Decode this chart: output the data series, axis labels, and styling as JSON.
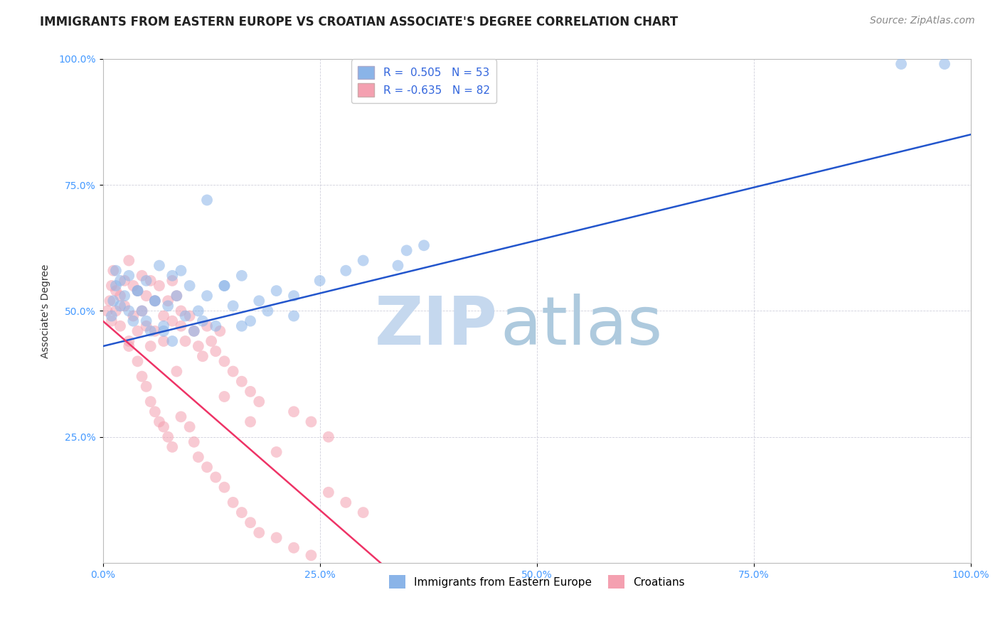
{
  "title": "IMMIGRANTS FROM EASTERN EUROPE VS CROATIAN ASSOCIATE'S DEGREE CORRELATION CHART",
  "source": "Source: ZipAtlas.com",
  "xlabel": "",
  "ylabel": "Associate's Degree",
  "xlim": [
    0.0,
    100.0
  ],
  "ylim": [
    0.0,
    100.0
  ],
  "xtick_labels": [
    "0.0%",
    "25.0%",
    "50.0%",
    "75.0%",
    "100.0%"
  ],
  "xtick_positions": [
    0,
    25,
    50,
    75,
    100
  ],
  "ytick_labels": [
    "25.0%",
    "50.0%",
    "75.0%",
    "100.0%"
  ],
  "ytick_positions": [
    25,
    50,
    75,
    100
  ],
  "blue_color": "#8AB4E8",
  "pink_color": "#F4A0B0",
  "blue_line_color": "#2255CC",
  "pink_line_color": "#EE3366",
  "watermark_ZIP_color": "#C8D8EC",
  "watermark_atlas_color": "#B0CCE4",
  "legend_R1": "R =  0.505",
  "legend_N1": "N = 53",
  "legend_R2": "R = -0.635",
  "legend_N2": "N = 82",
  "legend_label1": "Immigrants from Eastern Europe",
  "legend_label2": "Croatians",
  "blue_x": [
    1.0,
    1.2,
    1.5,
    2.0,
    2.5,
    3.0,
    3.5,
    4.0,
    4.5,
    5.0,
    5.5,
    6.0,
    6.5,
    7.0,
    7.5,
    8.0,
    8.5,
    9.0,
    9.5,
    10.0,
    10.5,
    11.0,
    11.5,
    12.0,
    13.0,
    14.0,
    15.0,
    16.0,
    17.0,
    18.0,
    20.0,
    22.0,
    25.0,
    28.0,
    30.0,
    35.0,
    37.0,
    34.0,
    22.0,
    19.0,
    16.0,
    14.0,
    8.0,
    7.0,
    6.0,
    5.0,
    4.0,
    3.0,
    2.0,
    1.5,
    12.0,
    92.0,
    97.0
  ],
  "blue_y": [
    49.0,
    52.0,
    55.0,
    51.0,
    53.0,
    57.0,
    48.0,
    54.0,
    50.0,
    56.0,
    46.0,
    52.0,
    59.0,
    47.0,
    51.0,
    44.0,
    53.0,
    58.0,
    49.0,
    55.0,
    46.0,
    50.0,
    48.0,
    53.0,
    47.0,
    55.0,
    51.0,
    57.0,
    48.0,
    52.0,
    54.0,
    49.0,
    56.0,
    58.0,
    60.0,
    62.0,
    63.0,
    59.0,
    53.0,
    50.0,
    47.0,
    55.0,
    57.0,
    46.0,
    52.0,
    48.0,
    54.0,
    50.0,
    56.0,
    58.0,
    72.0,
    99.0,
    99.0
  ],
  "pink_x": [
    0.5,
    0.8,
    1.0,
    1.0,
    1.2,
    1.5,
    1.5,
    2.0,
    2.0,
    2.5,
    2.5,
    3.0,
    3.0,
    3.5,
    3.5,
    4.0,
    4.0,
    4.5,
    4.5,
    5.0,
    5.0,
    5.5,
    5.5,
    6.0,
    6.0,
    6.5,
    7.0,
    7.0,
    7.5,
    8.0,
    8.0,
    8.5,
    9.0,
    9.0,
    9.5,
    10.0,
    10.5,
    11.0,
    11.5,
    12.0,
    12.5,
    13.0,
    13.5,
    14.0,
    15.0,
    16.0,
    17.0,
    18.0,
    3.0,
    4.0,
    4.5,
    5.0,
    5.5,
    6.0,
    6.5,
    7.0,
    7.5,
    8.0,
    9.0,
    10.0,
    10.5,
    11.0,
    12.0,
    13.0,
    14.0,
    15.0,
    16.0,
    17.0,
    18.0,
    20.0,
    22.0,
    24.0,
    26.0,
    28.0,
    30.0,
    22.0,
    24.0,
    26.0,
    8.5,
    14.0,
    17.0,
    20.0
  ],
  "pink_y": [
    50.0,
    52.0,
    55.0,
    48.0,
    58.0,
    54.0,
    50.0,
    53.0,
    47.0,
    56.0,
    51.0,
    60.0,
    44.0,
    55.0,
    49.0,
    54.0,
    46.0,
    57.0,
    50.0,
    53.0,
    47.0,
    56.0,
    43.0,
    52.0,
    46.0,
    55.0,
    49.0,
    44.0,
    52.0,
    56.0,
    48.0,
    53.0,
    47.0,
    50.0,
    44.0,
    49.0,
    46.0,
    43.0,
    41.0,
    47.0,
    44.0,
    42.0,
    46.0,
    40.0,
    38.0,
    36.0,
    34.0,
    32.0,
    43.0,
    40.0,
    37.0,
    35.0,
    32.0,
    30.0,
    28.0,
    27.0,
    25.0,
    23.0,
    29.0,
    27.0,
    24.0,
    21.0,
    19.0,
    17.0,
    15.0,
    12.0,
    10.0,
    8.0,
    6.0,
    5.0,
    3.0,
    1.5,
    14.0,
    12.0,
    10.0,
    30.0,
    28.0,
    25.0,
    38.0,
    33.0,
    28.0,
    22.0
  ],
  "blue_line_x": [
    0,
    100
  ],
  "blue_line_y": [
    43,
    85
  ],
  "pink_line_x": [
    0,
    32
  ],
  "pink_line_y": [
    48,
    0
  ],
  "title_fontsize": 12,
  "axis_label_fontsize": 10,
  "tick_fontsize": 10,
  "legend_fontsize": 11,
  "source_fontsize": 10
}
